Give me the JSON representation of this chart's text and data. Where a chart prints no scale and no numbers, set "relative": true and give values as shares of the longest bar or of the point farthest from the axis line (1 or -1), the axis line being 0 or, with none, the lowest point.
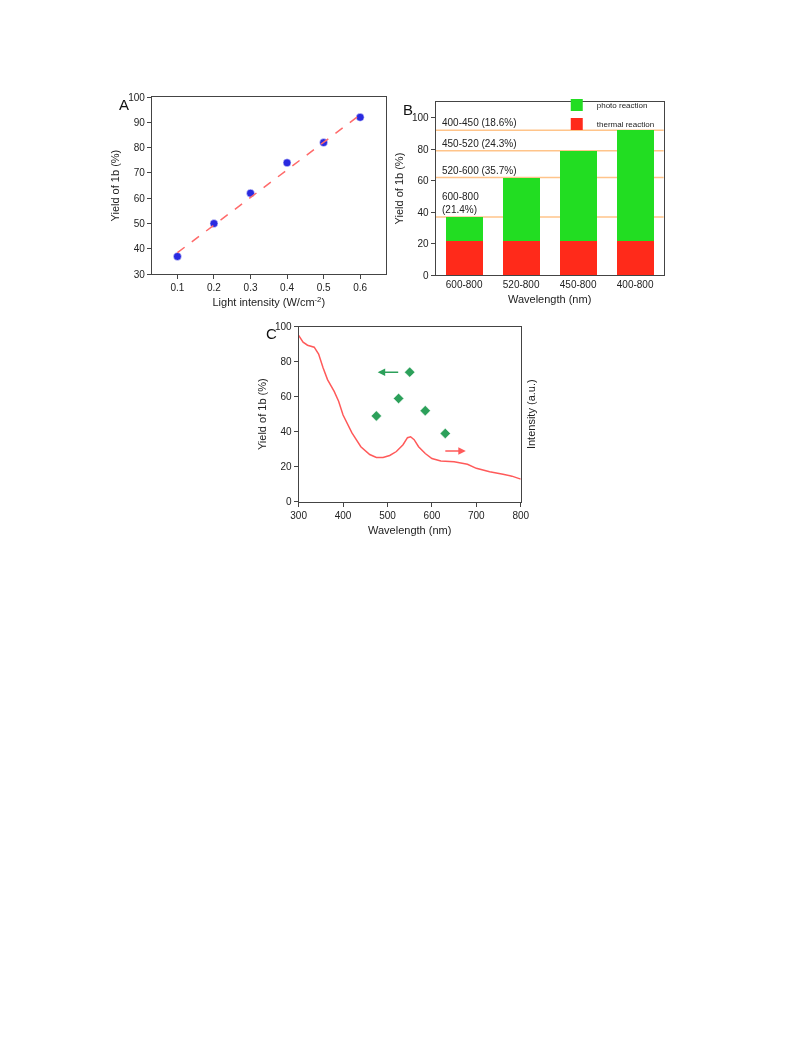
{
  "chart_data": [
    {
      "type": "scatter",
      "title": "A",
      "xlabel": "Light intensity (W/cm$^{-2}$)",
      "ylabel": "Yield of 1b (%)",
      "x": [
        0.1,
        0.2,
        0.3,
        0.4,
        0.5,
        0.6
      ],
      "series": [
        {
          "color": "#2a2ae0",
          "marker": "circle",
          "values": [
            37,
            50,
            62,
            74,
            82,
            92
          ]
        },
        {
          "type": "line",
          "color": "#ff6a6a",
          "line_style": "dashed",
          "x": [
            0.1,
            0.6
          ],
          "values": [
            38.5,
            93
          ]
        }
      ],
      "xlim": [
        0.03,
        0.67
      ],
      "xticks": [
        0.1,
        0.2,
        0.3,
        0.4,
        0.5,
        0.6
      ],
      "ylim": [
        30,
        100
      ],
      "yticks": [
        30,
        40,
        50,
        60,
        70,
        80,
        90,
        100
      ],
      "grid": false
    },
    {
      "type": "bar",
      "title": "B",
      "xlabel": "Wavelength (nm)",
      "ylabel": "Yield of 1b (%)",
      "categories": [
        "600-800",
        "520-800",
        "450-800",
        "400-800"
      ],
      "stacked": true,
      "series": [
        {
          "name": "thermal reaction",
          "color": "#ff2a1a",
          "values": [
            22,
            22,
            22,
            22
          ]
        },
        {
          "name": "photo reaction",
          "color": "#22dd22",
          "values": [
            15,
            40,
            57,
            70
          ]
        }
      ],
      "ref_lines": [
        {
          "axis": "y",
          "value": 37,
          "color": "#ffc48a"
        },
        {
          "axis": "y",
          "value": 62,
          "color": "#ffc48a"
        },
        {
          "axis": "y",
          "value": 79,
          "color": "#ffc48a"
        },
        {
          "axis": "y",
          "value": 92,
          "color": "#ffc48a"
        }
      ],
      "annotations": [
        "600-800\n(21.4%)",
        "520-600 (35.7%)",
        "450-520 (24.3%)",
        "400-450 (18.6%)"
      ],
      "ylim": [
        0,
        110
      ],
      "yticks": [
        0,
        20,
        40,
        60,
        80,
        100
      ],
      "legend": "top right",
      "grid": false
    },
    {
      "type": "scatter",
      "title": "C",
      "xlabel": "Wavelength (nm)",
      "ylabel": "Yield of 1b (%)",
      "series": [
        {
          "color": "#2ca05a",
          "marker": "diamond",
          "x": [
            475,
            525,
            550,
            585,
            630
          ],
          "values": [
            49,
            59,
            74,
            52,
            39
          ]
        }
      ],
      "xlim": [
        300,
        800
      ],
      "xticks": [
        300,
        400,
        500,
        600,
        700,
        800
      ],
      "ylim": [
        0,
        100
      ],
      "yticks": [
        0,
        20,
        40,
        60,
        80,
        100
      ],
      "grid": false
    },
    {
      "type": "line",
      "relative": true,
      "ylabel": "Intensity (a.u.)",
      "xlim": [
        300,
        800
      ],
      "x": [
        300,
        310,
        320,
        335,
        345,
        355,
        365,
        380,
        390,
        400,
        420,
        440,
        460,
        475,
        490,
        505,
        520,
        535,
        545,
        552,
        560,
        570,
        585,
        600,
        620,
        650,
        680,
        700,
        730,
        760,
        780,
        800
      ],
      "series": [
        {
          "color": "#ff5a5a",
          "values": [
            1,
            0.959,
            0.941,
            0.929,
            0.888,
            0.805,
            0.734,
            0.663,
            0.604,
            0.521,
            0.414,
            0.331,
            0.284,
            0.266,
            0.266,
            0.278,
            0.302,
            0.343,
            0.385,
            0.391,
            0.373,
            0.331,
            0.29,
            0.26,
            0.245,
            0.24,
            0.225,
            0.201,
            0.18,
            0.166,
            0.154,
            0.136
          ]
        }
      ]
    }
  ]
}
